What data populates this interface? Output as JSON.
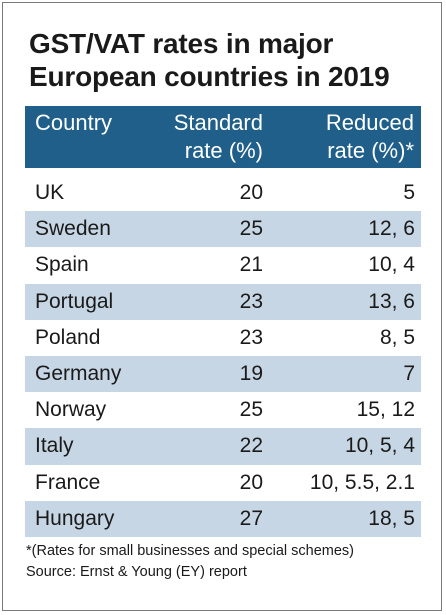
{
  "title_line1": "GST/VAT rates in major",
  "title_line2": "European countries in 2019",
  "header": {
    "country": "Country",
    "standard_line1": "Standard",
    "standard_line2": "rate (%)",
    "reduced_line1": "Reduced",
    "reduced_line2": "rate (%)*"
  },
  "rows": [
    {
      "country": "UK",
      "standard": "20",
      "reduced": "5"
    },
    {
      "country": "Sweden",
      "standard": "25",
      "reduced": "12, 6"
    },
    {
      "country": "Spain",
      "standard": "21",
      "reduced": "10, 4"
    },
    {
      "country": "Portugal",
      "standard": "23",
      "reduced": "13, 6"
    },
    {
      "country": "Poland",
      "standard": "23",
      "reduced": "8, 5"
    },
    {
      "country": "Germany",
      "standard": "19",
      "reduced": "7"
    },
    {
      "country": "Norway",
      "standard": "25",
      "reduced": "15, 12"
    },
    {
      "country": "Italy",
      "standard": "22",
      "reduced": "10, 5, 4"
    },
    {
      "country": "France",
      "standard": "20",
      "reduced": "10, 5.5, 2.1"
    },
    {
      "country": "Hungary",
      "standard": "27",
      "reduced": "18, 5"
    }
  ],
  "footnote_line1": "*(Rates for small businesses and special schemes)",
  "footnote_line2": "Source: Ernst & Young (EY) report",
  "colors": {
    "header_bg": "#1f5f8a",
    "stripe": "#c7d6e4"
  }
}
